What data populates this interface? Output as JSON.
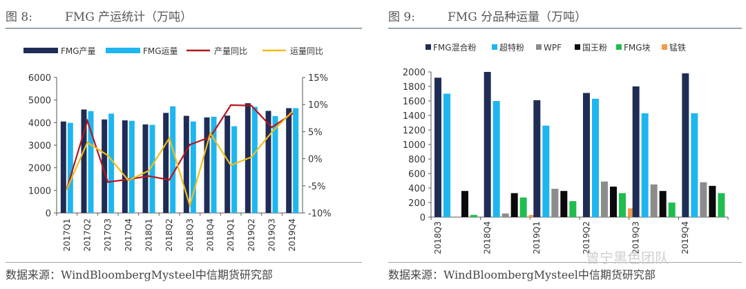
{
  "watermark": "曾宁黑色团队",
  "chart_data": [
    {
      "type": "bar",
      "figure_label": "图 8:",
      "title": "FMG 产运统计（万吨）",
      "source": "数据来源：WindBloombergMysteel中信期货研究部",
      "categories": [
        "2017Q1",
        "2017Q2",
        "2017Q3",
        "2017Q4",
        "2018Q1",
        "2018Q2",
        "2018Q3",
        "2018Q4",
        "2019Q1",
        "2019Q2",
        "2019Q3",
        "2019Q4"
      ],
      "series": [
        {
          "name": "FMG产量",
          "kind": "bar",
          "axis": "left",
          "color": "#1f2d56",
          "values": [
            4050,
            4580,
            4140,
            4100,
            3920,
            4430,
            4300,
            4230,
            4310,
            4860,
            4520,
            4640
          ]
        },
        {
          "name": "FMG运量",
          "kind": "bar",
          "axis": "left",
          "color": "#1fb6f0",
          "values": [
            3990,
            4510,
            4400,
            4080,
            3900,
            4720,
            4050,
            4260,
            3840,
            4700,
            4290,
            4640
          ]
        },
        {
          "name": "产量同比",
          "kind": "line",
          "axis": "right",
          "color": "#b5151c",
          "values": [
            -5.5,
            7.0,
            -4.3,
            -3.8,
            -3.2,
            -3.9,
            2.6,
            4.0,
            9.9,
            9.8,
            5.8,
            8.3
          ]
        },
        {
          "name": "运量同比",
          "kind": "line",
          "axis": "right",
          "color": "#f2be1a",
          "values": [
            -5.6,
            3.0,
            0.6,
            -4.0,
            -2.2,
            3.8,
            -8.6,
            4.7,
            -1.2,
            0.3,
            4.9,
            8.7
          ]
        }
      ],
      "ylim_left": [
        0,
        6000
      ],
      "yticks_left": [
        "0",
        "1000",
        "2000",
        "3000",
        "4000",
        "5000",
        "6000"
      ],
      "ylim_right": [
        -10,
        15
      ],
      "yticks_right": [
        "-10%",
        "-5%",
        "0%",
        "5%",
        "10%",
        "15%"
      ],
      "legend": "top"
    },
    {
      "type": "bar",
      "figure_label": "图 9:",
      "title": "FMG 分品种运量（万吨）",
      "source": "数据来源：WindBloombergMysteel中信期货研究部",
      "categories": [
        "2018Q3",
        "2018Q4",
        "2019Q1",
        "2019Q2",
        "2019Q3",
        "2019Q4"
      ],
      "series": [
        {
          "name": "FMG混合粉",
          "color": "#1f2d56",
          "values": [
            1920,
            2000,
            1610,
            1710,
            1800,
            1980
          ]
        },
        {
          "name": "超特粉",
          "color": "#1fb6f0",
          "values": [
            1700,
            1600,
            1260,
            1630,
            1430,
            1430
          ]
        },
        {
          "name": "WPF",
          "color": "#8c8c8c",
          "values": [
            0,
            50,
            390,
            490,
            450,
            480
          ]
        },
        {
          "name": "国王粉",
          "color": "#0a0a0a",
          "values": [
            360,
            330,
            360,
            420,
            360,
            430
          ]
        },
        {
          "name": "FMG块",
          "color": "#1fbd4e",
          "values": [
            30,
            270,
            220,
            330,
            200,
            330
          ]
        },
        {
          "name": "锰铁",
          "color": "#f39a4a",
          "values": [
            0,
            30,
            0,
            120,
            0,
            0
          ]
        }
      ],
      "ylim": [
        0,
        2000
      ],
      "yticks": [
        "0",
        "200",
        "400",
        "600",
        "800",
        "1000",
        "1200",
        "1400",
        "1600",
        "1800",
        "2000"
      ],
      "legend": "top"
    }
  ]
}
